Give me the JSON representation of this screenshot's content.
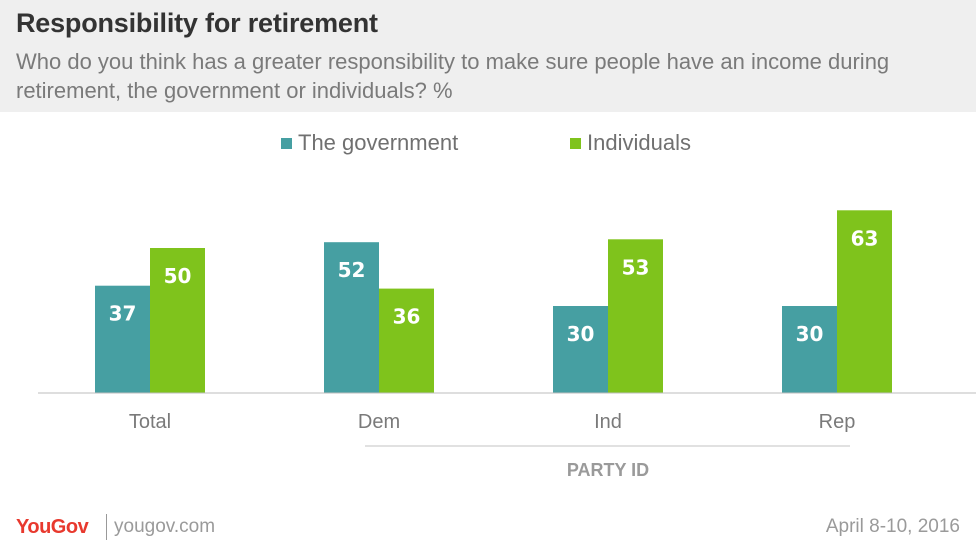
{
  "header": {
    "title": "Responsibility  for retirement",
    "subtitle": "Who do you think has a greater responsibility to make sure people have an income during retirement, the government or individuals? %"
  },
  "colors": {
    "government": "#469fa2",
    "individuals": "#7fc31c",
    "header_bg": "#efefef",
    "brand": "#e8392e"
  },
  "chart_data": {
    "type": "bar",
    "categories": [
      "Total",
      "Dem",
      "Ind",
      "Rep"
    ],
    "series": [
      {
        "name": "The government",
        "values": [
          37,
          52,
          30,
          30
        ]
      },
      {
        "name": "Individuals",
        "values": [
          50,
          36,
          53,
          63
        ]
      }
    ],
    "group_label": "PARTY ID",
    "ylim": [
      0,
      70
    ],
    "grid": false,
    "legend_position": "top-center"
  },
  "footer": {
    "logo": "YouGov",
    "site": "yougov.com",
    "date": "April 8-10, 2016"
  }
}
